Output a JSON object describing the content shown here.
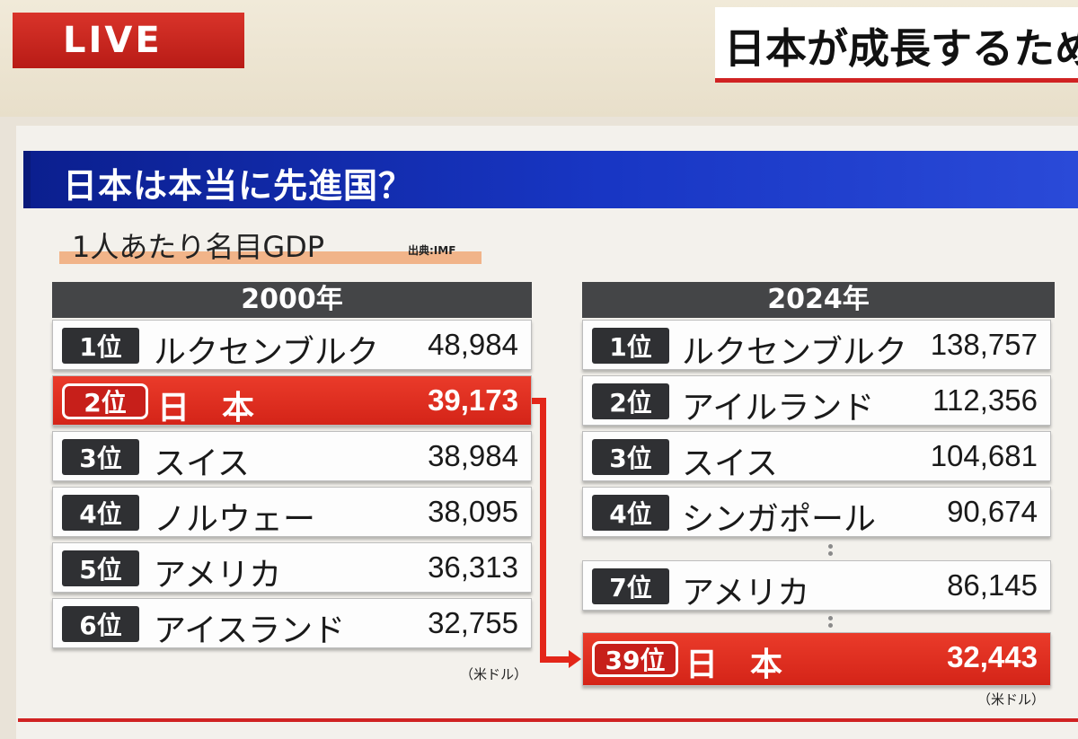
{
  "live_label": "LIVE",
  "headline": "日本が成長するため",
  "title": "日本は本当に先進国？",
  "subtitle": "1人あたり名目GDP",
  "source": "出典:IMF",
  "colors": {
    "highlight": "#e32619",
    "title_bar": "#1836c4",
    "rank_badge": "#2f3033"
  },
  "table_2000": {
    "year": "2000年",
    "unit": "（米ドル）",
    "rows": [
      {
        "rank": "1位",
        "country": "ルクセンブルク",
        "value": "48,984"
      },
      {
        "rank": "2位",
        "country": "日　本",
        "value": "39,173"
      },
      {
        "rank": "3位",
        "country": "スイス",
        "value": "38,984"
      },
      {
        "rank": "4位",
        "country": "ノルウェー",
        "value": "38,095"
      },
      {
        "rank": "5位",
        "country": "アメリカ",
        "value": "36,313"
      },
      {
        "rank": "6位",
        "country": "アイスランド",
        "value": "32,755"
      }
    ]
  },
  "table_2024": {
    "year": "2024年",
    "unit": "（米ドル）",
    "rows": [
      {
        "rank": "1位",
        "country": "ルクセンブルク",
        "value": "138,757"
      },
      {
        "rank": "2位",
        "country": "アイルランド",
        "value": "112,356"
      },
      {
        "rank": "3位",
        "country": "スイス",
        "value": "104,681"
      },
      {
        "rank": "4位",
        "country": "シンガポール",
        "value": "90,674"
      },
      {
        "rank": "7位",
        "country": "アメリカ",
        "value": "86,145"
      },
      {
        "rank": "39位",
        "country": "日　本",
        "value": "32,443"
      }
    ]
  }
}
